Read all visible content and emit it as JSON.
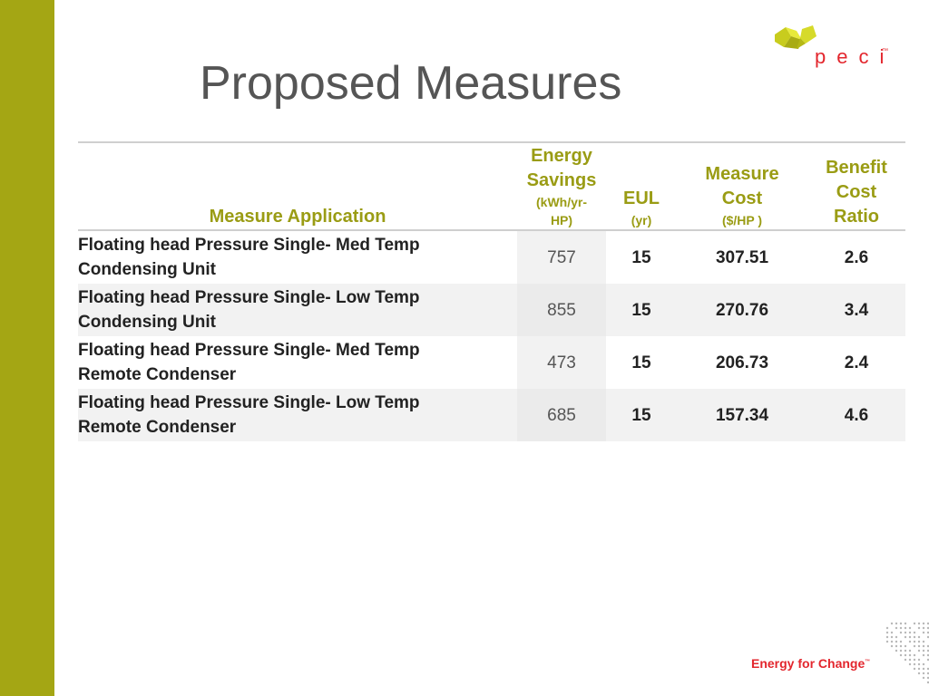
{
  "slide": {
    "title": "Proposed Measures",
    "accent_color": "#a4a614",
    "brand_color": "#e3262d"
  },
  "logo": {
    "text": "peci",
    "tm": "™"
  },
  "table": {
    "headers": {
      "measure_application": "Measure Application",
      "energy_savings": [
        "Energy",
        "Savings"
      ],
      "energy_savings_unit": [
        "(kWh/yr-",
        "HP)"
      ],
      "eul": "EUL",
      "eul_unit": "(yr)",
      "measure_cost": [
        "Measure",
        "Cost"
      ],
      "measure_cost_unit": "($/HP )",
      "benefit_cost_ratio": [
        "Benefit",
        "Cost",
        "Ratio"
      ]
    },
    "rows": [
      {
        "application": [
          "Floating head Pressure Single- Med Temp",
          "Condensing Unit"
        ],
        "energy_savings": "757",
        "eul": "15",
        "measure_cost": "307.51",
        "bcr": "2.6"
      },
      {
        "application": [
          "Floating head Pressure Single- Low Temp",
          "Condensing Unit"
        ],
        "energy_savings": "855",
        "eul": "15",
        "measure_cost": "270.76",
        "bcr": "3.4"
      },
      {
        "application": [
          "Floating head Pressure Single- Med Temp",
          "Remote Condenser"
        ],
        "energy_savings": "473",
        "eul": "15",
        "measure_cost": "206.73",
        "bcr": "2.4"
      },
      {
        "application": [
          "Floating head Pressure Single- Low Temp",
          "Remote Condenser"
        ],
        "energy_savings": "685",
        "eul": "15",
        "measure_cost": "157.34",
        "bcr": "4.6"
      }
    ]
  },
  "footer": {
    "tagline": "Energy for Change",
    "tm": "™"
  }
}
